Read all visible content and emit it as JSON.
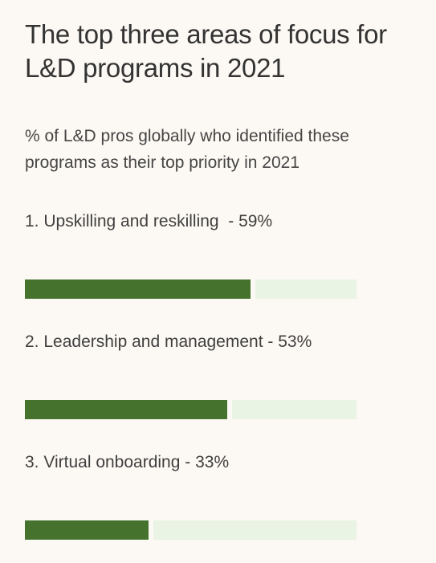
{
  "title": "The top three areas of focus for L&D programs in 2021",
  "subtitle": "% of L&D pros globally who identified these programs as their top priority in 2021",
  "colors": {
    "background": "#fcf9f4",
    "bar_fill": "#45732d",
    "bar_track": "#e9f4e4"
  },
  "chart_data": {
    "type": "bar",
    "orientation": "horizontal",
    "title": "The top three areas of focus for L&D programs in 2021",
    "subtitle": "% of L&D pros globally who identified these programs as their top priority in 2021",
    "categories": [
      "1. Upskilling and reskilling  - 59%",
      "2. Leadership and management - 53%",
      "3. Virtual onboarding - 33%"
    ],
    "values": [
      59,
      53,
      33
    ],
    "unit": "%",
    "xlim": [
      0,
      85
    ],
    "grid": false,
    "legend": "none"
  }
}
